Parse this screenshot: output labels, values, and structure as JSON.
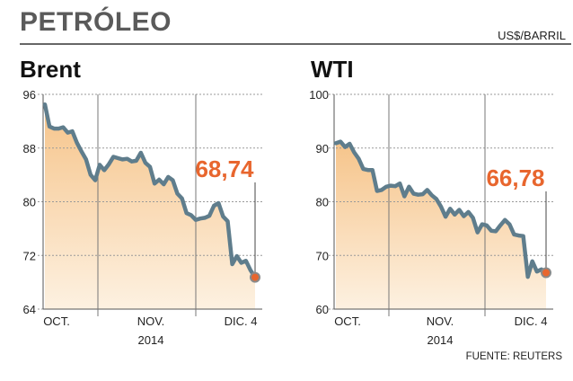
{
  "header": {
    "title": "PETRÓLEO",
    "unit": "US$/BARRIL",
    "source": "FUENTE: REUTERS"
  },
  "colors": {
    "line": "#5f7d8c",
    "fill_top": "#f6c48a",
    "fill_bottom": "#fdf1e1",
    "accent": "#e8662e",
    "grid": "#9a9a9a"
  },
  "chart_data": [
    {
      "type": "area",
      "title": "Brent",
      "ylim": [
        64,
        96
      ],
      "yticks": [
        "96",
        "88",
        "80",
        "72",
        "64"
      ],
      "xticks": [
        {
          "label": "OCT.",
          "sub": ""
        },
        {
          "label": "NOV.",
          "sub": "2014"
        },
        {
          "label": "DIC. 4",
          "sub": ""
        }
      ],
      "last_value_label": "68,74",
      "values": [
        94.5,
        91.2,
        90.9,
        90.9,
        91.1,
        90.3,
        90.5,
        88.8,
        87.5,
        86.3,
        84.0,
        83.2,
        85.5,
        84.7,
        85.6,
        86.7,
        86.5,
        86.3,
        86.4,
        86.0,
        86.1,
        87.3,
        85.8,
        85.2,
        82.7,
        83.3,
        82.6,
        83.7,
        83.2,
        81.2,
        80.5,
        78.3,
        78.0,
        77.3,
        77.5,
        77.6,
        77.9,
        79.4,
        79.8,
        77.8,
        77.1,
        70.7,
        71.9,
        70.9,
        71.2,
        69.8,
        68.74
      ]
    },
    {
      "type": "area",
      "title": "WTI",
      "ylim": [
        60,
        100
      ],
      "yticks": [
        "100",
        "90",
        "80",
        "70",
        "60"
      ],
      "xticks": [
        {
          "label": "OCT.",
          "sub": ""
        },
        {
          "label": "NOV.",
          "sub": "2014"
        },
        {
          "label": "DIC. 4",
          "sub": ""
        }
      ],
      "last_value_label": "66,78",
      "values": [
        90.9,
        91.2,
        90.2,
        90.8,
        89.2,
        88.0,
        86.1,
        85.9,
        85.9,
        82.0,
        82.2,
        82.8,
        83.0,
        82.9,
        83.4,
        81.0,
        82.8,
        81.5,
        81.3,
        81.4,
        82.2,
        81.2,
        80.5,
        79.1,
        77.2,
        78.7,
        77.6,
        78.5,
        77.3,
        78.1,
        77.0,
        74.3,
        75.8,
        75.6,
        74.6,
        74.5,
        75.6,
        76.6,
        75.8,
        73.9,
        73.7,
        73.6,
        66.0,
        68.9,
        67.0,
        67.4,
        66.78
      ]
    }
  ]
}
